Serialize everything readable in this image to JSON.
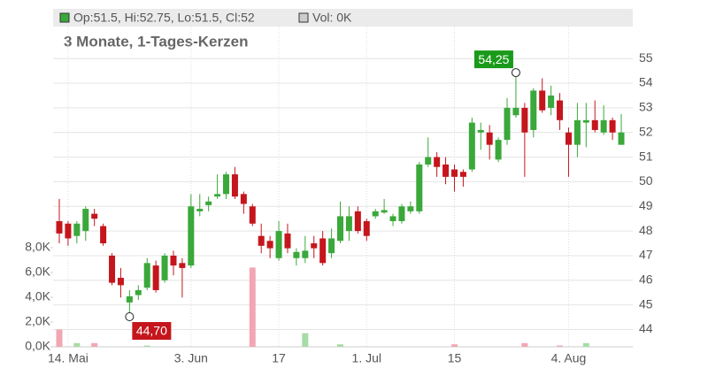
{
  "chart_data": {
    "type": "candlestick",
    "header_ohlc": "Op:51.5, Hi:52.75, Lo:51.5, Cl:52",
    "header_volume": "Vol: 0K",
    "subtitle": "3 Monate, 1-Tages-Kerzen",
    "categories": [
      null,
      "14. Mai",
      null,
      null,
      null,
      null,
      null,
      null,
      null,
      null,
      null,
      null,
      null,
      null,
      null,
      "3. Jun",
      null,
      null,
      null,
      null,
      null,
      null,
      null,
      null,
      null,
      "17",
      null,
      null,
      null,
      null,
      null,
      null,
      null,
      null,
      null,
      "1. Jul",
      null,
      null,
      null,
      null,
      null,
      null,
      null,
      null,
      null,
      "15",
      null,
      null,
      null,
      null,
      null,
      null,
      null,
      null,
      null,
      null,
      null,
      null,
      "4. Aug",
      null,
      null,
      null,
      null,
      null,
      null
    ],
    "open": [
      48.4,
      48.3,
      47.8,
      48.0,
      48.7,
      48.2,
      47.0,
      46.1,
      45.1,
      45.4,
      45.7,
      46.6,
      46.0,
      47.0,
      46.7,
      46.6,
      48.8,
      49.05,
      49.4,
      49.5,
      50.3,
      49.5,
      49.0,
      47.8,
      47.6,
      46.9,
      47.9,
      46.9,
      46.9,
      47.5,
      47.7,
      47.1,
      47.6,
      48.0,
      48.8,
      48.4,
      48.6,
      48.75,
      48.4,
      48.4,
      48.8,
      48.8,
      50.7,
      51.0,
      50.7,
      50.5,
      50.4,
      50.5,
      52.0,
      52.0,
      50.9,
      51.7,
      52.7,
      53.0,
      52.1,
      53.7,
      53.0,
      53.3,
      52.0,
      51.5,
      52.4,
      52.5,
      52.0,
      52.5,
      51.5
    ],
    "high": [
      49.3,
      48.4,
      48.4,
      49.0,
      48.9,
      48.3,
      47.1,
      46.5,
      45.6,
      45.8,
      46.9,
      46.8,
      47.1,
      47.2,
      46.9,
      49.5,
      49.5,
      49.4,
      50.3,
      50.4,
      50.6,
      49.6,
      49.1,
      48.3,
      47.8,
      48.4,
      48.3,
      47.3,
      47.8,
      47.8,
      48.0,
      48.1,
      49.2,
      49.0,
      49.0,
      48.5,
      48.9,
      49.3,
      48.7,
      49.1,
      49.2,
      50.8,
      51.8,
      51.2,
      51.0,
      50.7,
      50.5,
      52.6,
      52.4,
      52.3,
      51.8,
      53.4,
      54.25,
      53.2,
      53.8,
      54.2,
      53.9,
      53.6,
      52.2,
      53.2,
      53.2,
      53.3,
      53.1,
      52.6,
      52.75
    ],
    "low": [
      47.5,
      47.4,
      47.5,
      47.6,
      48.2,
      47.4,
      45.8,
      45.3,
      44.7,
      45.2,
      45.6,
      45.5,
      45.9,
      46.2,
      45.3,
      46.5,
      48.6,
      48.8,
      49.3,
      49.3,
      49.3,
      48.7,
      48.2,
      47.1,
      46.9,
      46.8,
      47.1,
      46.6,
      46.7,
      46.9,
      46.6,
      46.9,
      47.5,
      47.6,
      47.9,
      47.6,
      48.5,
      48.7,
      48.2,
      48.3,
      48.7,
      48.7,
      50.6,
      50.2,
      49.9,
      49.6,
      49.8,
      50.4,
      51.3,
      50.9,
      50.8,
      51.5,
      52.6,
      50.2,
      51.8,
      52.8,
      52.7,
      52.1,
      50.2,
      51.0,
      51.4,
      52.0,
      51.9,
      51.7,
      51.5
    ],
    "close": [
      47.9,
      47.7,
      48.3,
      48.9,
      48.5,
      47.5,
      45.9,
      45.8,
      45.35,
      45.6,
      46.7,
      45.6,
      47.0,
      46.6,
      46.5,
      49.0,
      48.9,
      49.2,
      49.5,
      50.3,
      49.4,
      49.1,
      48.3,
      47.4,
      47.3,
      48.0,
      47.3,
      47.15,
      47.2,
      47.3,
      46.7,
      47.7,
      48.6,
      48.6,
      48.0,
      47.8,
      48.8,
      48.85,
      48.6,
      49.0,
      49.0,
      50.7,
      51.0,
      50.6,
      50.2,
      50.2,
      50.2,
      52.4,
      52.1,
      51.5,
      51.7,
      53.0,
      53.0,
      52.0,
      53.7,
      52.9,
      53.5,
      52.5,
      51.5,
      52.5,
      52.5,
      52.1,
      52.5,
      52.0,
      52
    ],
    "volume": [
      1400,
      0,
      300,
      0,
      300,
      0,
      0,
      0,
      0,
      0,
      100,
      0,
      0,
      0,
      0,
      0,
      0,
      0,
      0,
      0,
      0,
      0,
      6400,
      0,
      0,
      0,
      0,
      0,
      1100,
      0,
      0,
      0,
      200,
      0,
      0,
      0,
      0,
      0,
      0,
      0,
      0,
      0,
      0,
      0,
      0,
      200,
      0,
      0,
      0,
      0,
      0,
      0,
      0,
      300,
      0,
      0,
      0,
      100,
      0,
      0,
      300,
      0,
      0,
      0,
      0
    ],
    "up_color": "#3aa83a",
    "down_color": "#c4161c",
    "up_volume_color": "#a6dca6",
    "down_volume_color": "#f2a6b3",
    "ylim": [
      43.3,
      56.3
    ],
    "yticks": [
      44,
      45,
      46,
      47,
      48,
      49,
      50,
      51,
      52,
      53,
      54,
      55
    ],
    "y2lim": [
      0,
      25860
    ],
    "y2ticks": [
      {
        "value": 0,
        "label": "0,0K"
      },
      {
        "value": 2000,
        "label": "2,0K"
      },
      {
        "value": 4000,
        "label": "4,0K"
      },
      {
        "value": 6000,
        "label": "6,0K"
      },
      {
        "value": 8000,
        "label": "8,0K"
      }
    ],
    "annotations": [
      {
        "label": "54,25",
        "value": 54.25,
        "color": "#1a9a1a"
      },
      {
        "label": "44,70",
        "value": 44.7,
        "color": "#c4161c"
      }
    ],
    "grid": true
  }
}
